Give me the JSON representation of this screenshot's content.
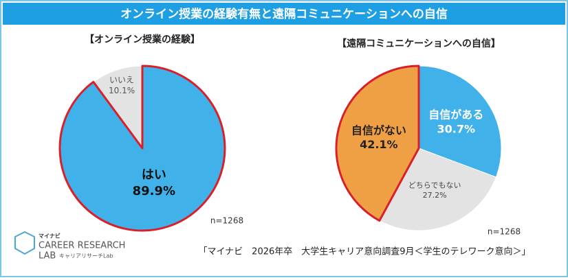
{
  "title": "オンライン授業の経験有無と遠隔コミュニケーションへの自信",
  "source": "「マイナビ　2026年卒　大学生キャリア意向調査9月＜学生のテレワーク意向＞」",
  "logo": {
    "brand": "マイナビ",
    "line1": "CAREER RESEARCH",
    "line2": "LAB",
    "sub": "キャリアリサーチLab"
  },
  "chart_data": [
    {
      "type": "pie",
      "title": "【オンライン授業の経験】",
      "note": "n=1268",
      "categories": [
        "はい",
        "いいえ"
      ],
      "values": [
        89.9,
        10.1
      ],
      "value_labels": [
        "89.9%",
        "10.1%"
      ],
      "colors": [
        "#41b1e9",
        "#e3e3e3"
      ],
      "highlight": 0,
      "highlight_color": "#d9202a"
    },
    {
      "type": "pie",
      "title": "【遠隔コミュニケーションへの自信】",
      "note": "n=1268",
      "categories": [
        "自信がある",
        "どちらでもない",
        "自信がない"
      ],
      "values": [
        30.7,
        27.2,
        42.1
      ],
      "value_labels": [
        "30.7%",
        "27.2%",
        "42.1%"
      ],
      "colors": [
        "#41b1e9",
        "#e3e3e3",
        "#f0a044"
      ],
      "highlight": 2,
      "highlight_color": "#d9202a"
    }
  ]
}
